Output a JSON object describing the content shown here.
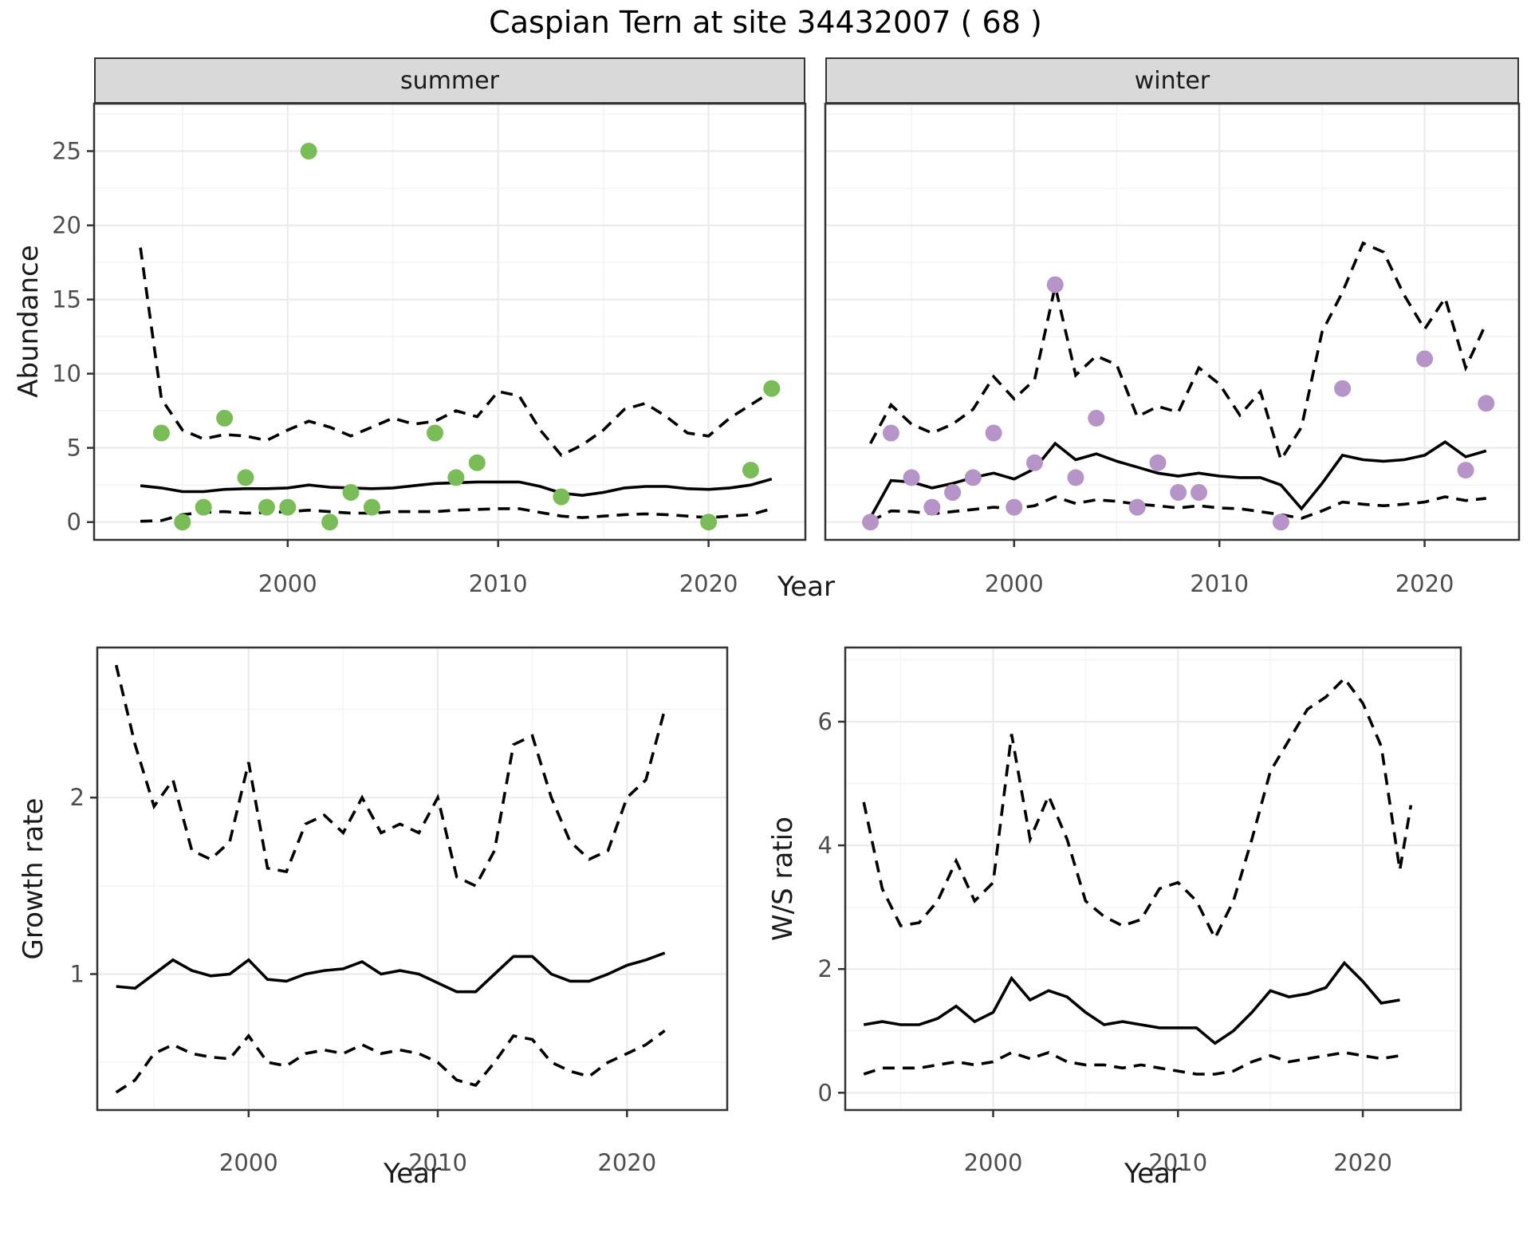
{
  "page_title": "Caspian Tern at site 34432007 ( 68 )",
  "colors": {
    "summer_point": "#7abc57",
    "winter_point": "#b794c7",
    "line": "#000000",
    "strip_bg": "#d9d9d9",
    "panel_border": "#333333",
    "grid_major": "#ebebeb",
    "grid_minor": "#f4f4f4",
    "tick_text": "#4d4d4d",
    "axis_title_text": "#1a1a1a"
  },
  "chart_data": [
    {
      "id": "abundance",
      "type": "scatter+line",
      "ylabel": "Abundance",
      "xlabel": "Year",
      "xlim": [
        1990.8,
        2024.6
      ],
      "ylim": [
        -1.2,
        28.2
      ],
      "xticks": [
        2000,
        2010,
        2020
      ],
      "xminor": [
        1995,
        2005,
        2015
      ],
      "yticks": [
        0,
        5,
        10,
        15,
        20,
        25
      ],
      "yminor": [
        2.5,
        7.5,
        12.5,
        17.5,
        22.5,
        27.5
      ],
      "legend": "none",
      "line_styles": {
        "fit": "solid",
        "ci_upper": "dashed",
        "ci_lower": "dashed"
      },
      "facets": [
        {
          "label": "summer",
          "point_color_key": "summer_point",
          "points": [
            [
              1994,
              6
            ],
            [
              1995,
              0
            ],
            [
              1996,
              1
            ],
            [
              1997,
              7
            ],
            [
              1998,
              3
            ],
            [
              1999,
              1
            ],
            [
              2000,
              1
            ],
            [
              2001,
              25
            ],
            [
              2002,
              0
            ],
            [
              2003,
              2
            ],
            [
              2004,
              1
            ],
            [
              2007,
              6
            ],
            [
              2008,
              3
            ],
            [
              2009,
              4
            ],
            [
              2013,
              1.7
            ],
            [
              2020,
              0
            ],
            [
              2022,
              3.5
            ],
            [
              2023,
              9
            ]
          ],
          "fit": {
            "x_start": 1993,
            "values": [
              2.45,
              2.3,
              2.05,
              2.05,
              2.2,
              2.25,
              2.25,
              2.3,
              2.5,
              2.35,
              2.3,
              2.25,
              2.3,
              2.45,
              2.6,
              2.65,
              2.7,
              2.7,
              2.7,
              2.4,
              1.95,
              1.8,
              2.0,
              2.3,
              2.4,
              2.4,
              2.25,
              2.2,
              2.3,
              2.5,
              2.9
            ]
          },
          "ci_upper": {
            "x_start": 1993,
            "values": [
              18.5,
              8.3,
              6.2,
              5.6,
              5.9,
              5.8,
              5.5,
              6.2,
              6.8,
              6.4,
              5.8,
              6.4,
              7.0,
              6.6,
              6.8,
              7.5,
              7.1,
              8.8,
              8.5,
              6.2,
              4.5,
              5.2,
              6.2,
              7.6,
              8.0,
              7.1,
              6.0,
              5.8,
              7.0,
              7.9,
              8.8
            ]
          },
          "ci_lower": {
            "x_start": 1993,
            "values": [
              0.05,
              0.1,
              0.5,
              0.65,
              0.7,
              0.6,
              0.65,
              0.7,
              0.8,
              0.7,
              0.6,
              0.6,
              0.7,
              0.7,
              0.7,
              0.8,
              0.85,
              0.9,
              0.9,
              0.65,
              0.4,
              0.3,
              0.4,
              0.5,
              0.55,
              0.5,
              0.4,
              0.3,
              0.4,
              0.5,
              0.9
            ]
          }
        },
        {
          "label": "winter",
          "point_color_key": "winter_point",
          "points": [
            [
              1993,
              0
            ],
            [
              1994,
              6
            ],
            [
              1995,
              3
            ],
            [
              1996,
              1
            ],
            [
              1997,
              2
            ],
            [
              1998,
              3
            ],
            [
              1999,
              6
            ],
            [
              2000,
              1
            ],
            [
              2001,
              4
            ],
            [
              2002,
              16
            ],
            [
              2003,
              3
            ],
            [
              2004,
              7
            ],
            [
              2006,
              1
            ],
            [
              2007,
              4
            ],
            [
              2008,
              2
            ],
            [
              2009,
              2
            ],
            [
              2013,
              0
            ],
            [
              2016,
              9
            ],
            [
              2020,
              11
            ],
            [
              2022,
              3.5
            ],
            [
              2023,
              8
            ]
          ],
          "fit": {
            "x_start": 1993,
            "values": [
              0.3,
              2.8,
              2.7,
              2.3,
              2.6,
              3.0,
              3.3,
              2.9,
              3.6,
              5.3,
              4.2,
              4.6,
              4.1,
              3.7,
              3.3,
              3.1,
              3.3,
              3.1,
              3.0,
              3.0,
              2.5,
              0.9,
              2.6,
              4.5,
              4.2,
              4.1,
              4.2,
              4.5,
              5.4,
              4.4,
              4.8
            ]
          },
          "ci_upper": {
            "x_start": 1993,
            "values": [
              5.3,
              7.9,
              6.6,
              6.0,
              6.6,
              7.6,
              9.8,
              8.3,
              9.6,
              15.9,
              9.9,
              11.2,
              10.6,
              7.1,
              7.8,
              7.4,
              10.4,
              9.3,
              7.2,
              8.8,
              4.2,
              6.4,
              12.8,
              15.5,
              18.8,
              18.2,
              15.3,
              13.0,
              15.1,
              10.4,
              13.4
            ]
          },
          "ci_lower": {
            "x_start": 1993,
            "values": [
              0.05,
              0.75,
              0.7,
              0.55,
              0.7,
              0.85,
              1.0,
              0.9,
              1.1,
              1.7,
              1.25,
              1.5,
              1.4,
              1.2,
              1.1,
              0.95,
              1.1,
              0.95,
              0.9,
              0.7,
              0.5,
              0.25,
              0.75,
              1.35,
              1.2,
              1.1,
              1.2,
              1.35,
              1.7,
              1.45,
              1.6
            ]
          }
        }
      ]
    },
    {
      "id": "growth_rate",
      "type": "line",
      "ylabel": "Growth rate",
      "xlabel": "Year",
      "xlim": [
        1992,
        2025.3
      ],
      "ylim": [
        0.23,
        2.85
      ],
      "xticks": [
        2000,
        2010,
        2020
      ],
      "xminor": [
        1995,
        2005,
        2015,
        2025
      ],
      "yticks": [
        1,
        2
      ],
      "yminor": [
        0.5,
        1.5,
        2.5
      ],
      "line_styles": {
        "fit": "solid",
        "ci_upper": "dashed",
        "ci_lower": "dashed"
      },
      "fit": {
        "x_start": 1993,
        "values": [
          0.93,
          0.92,
          1.0,
          1.08,
          1.02,
          0.99,
          1.0,
          1.08,
          0.97,
          0.96,
          1.0,
          1.02,
          1.03,
          1.07,
          1.0,
          1.02,
          1.0,
          0.95,
          0.9,
          0.9,
          1.0,
          1.1,
          1.1,
          1.0,
          0.96,
          0.96,
          1.0,
          1.05,
          1.08,
          1.12
        ]
      },
      "ci_upper": {
        "x_start": 1993,
        "values": [
          2.75,
          2.3,
          1.95,
          2.1,
          1.7,
          1.65,
          1.75,
          2.2,
          1.6,
          1.58,
          1.85,
          1.9,
          1.8,
          2.0,
          1.8,
          1.85,
          1.8,
          2.0,
          1.55,
          1.5,
          1.7,
          2.3,
          2.35,
          2.0,
          1.75,
          1.65,
          1.7,
          2.0,
          2.1,
          2.5
        ]
      },
      "ci_lower": {
        "x_start": 1993,
        "values": [
          0.33,
          0.4,
          0.55,
          0.6,
          0.55,
          0.53,
          0.52,
          0.65,
          0.5,
          0.48,
          0.55,
          0.57,
          0.55,
          0.6,
          0.55,
          0.57,
          0.55,
          0.5,
          0.4,
          0.37,
          0.5,
          0.65,
          0.63,
          0.5,
          0.45,
          0.42,
          0.5,
          0.55,
          0.6,
          0.68
        ]
      }
    },
    {
      "id": "ws_ratio",
      "type": "line",
      "ylabel": "W/S ratio",
      "xlabel": "Year",
      "xlim": [
        1992,
        2025.3
      ],
      "ylim": [
        -0.28,
        7.2
      ],
      "xticks": [
        2000,
        2010,
        2020
      ],
      "xminor": [
        1995,
        2005,
        2015,
        2025
      ],
      "yticks": [
        0,
        2,
        4,
        6
      ],
      "yminor": [
        1,
        3,
        5,
        7
      ],
      "line_styles": {
        "fit": "solid",
        "ci_upper": "dashed",
        "ci_lower": "dashed"
      },
      "fit": {
        "x_start": 1993,
        "values": [
          1.1,
          1.15,
          1.1,
          1.1,
          1.2,
          1.4,
          1.15,
          1.3,
          1.85,
          1.5,
          1.65,
          1.55,
          1.3,
          1.1,
          1.15,
          1.1,
          1.05,
          1.05,
          1.05,
          0.8,
          1.0,
          1.3,
          1.65,
          1.55,
          1.6,
          1.7,
          2.1,
          1.8,
          1.45,
          1.5
        ]
      },
      "ci_upper": {
        "x_start": 1993,
        "values": [
          4.7,
          3.3,
          2.7,
          2.75,
          3.1,
          3.75,
          3.1,
          3.4,
          5.8,
          4.1,
          4.8,
          4.1,
          3.1,
          2.85,
          2.7,
          2.8,
          3.3,
          3.4,
          3.1,
          2.5,
          3.1,
          4.1,
          5.2,
          5.7,
          6.2,
          6.4,
          6.7,
          6.3,
          5.6,
          3.6
        ],
        "extra": [
          [
            2022.6,
            4.65
          ]
        ]
      },
      "ci_lower": {
        "x_start": 1993,
        "values": [
          0.3,
          0.4,
          0.4,
          0.4,
          0.45,
          0.5,
          0.45,
          0.5,
          0.65,
          0.55,
          0.65,
          0.5,
          0.45,
          0.45,
          0.4,
          0.45,
          0.4,
          0.35,
          0.3,
          0.3,
          0.35,
          0.5,
          0.6,
          0.5,
          0.55,
          0.6,
          0.65,
          0.6,
          0.55,
          0.6
        ]
      }
    }
  ]
}
